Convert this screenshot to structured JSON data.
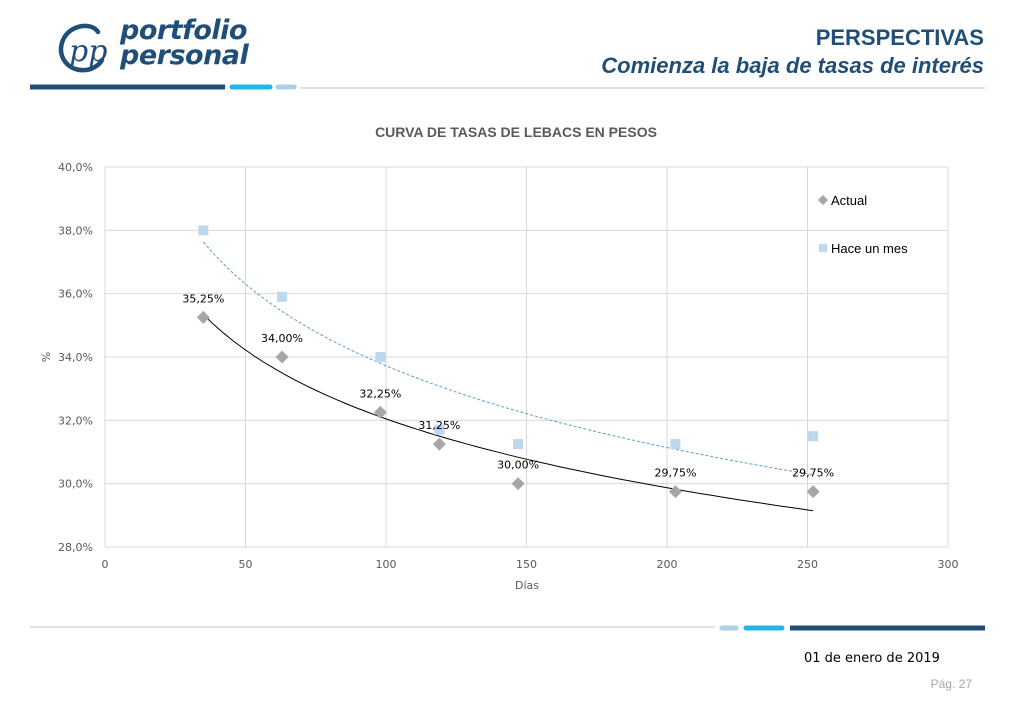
{
  "brand": {
    "logo_line1": "portfolio",
    "logo_line2": "personal",
    "logo_monogram": "pp"
  },
  "header": {
    "title": "PERSPECTIVAS",
    "subtitle": "Comienza la baja de tasas de interés"
  },
  "colors": {
    "brand_dark": "#1f4e79",
    "brand_cyan": "#25b4e4",
    "brand_light": "#a9d2e8",
    "series_actual": "#a6a6a6",
    "series_prev": "#bdd7ee",
    "trend_actual": "#000000",
    "trend_prev": "#5b9bd5"
  },
  "chart_data": {
    "type": "scatter",
    "title": "CURVA DE TASAS DE LEBACS EN PESOS",
    "xlabel": "Días",
    "ylabel": "%",
    "xlim": [
      0,
      300
    ],
    "ylim": [
      28,
      40
    ],
    "x_ticks": [
      "0",
      "50",
      "100",
      "150",
      "200",
      "250",
      "300"
    ],
    "y_ticks": [
      "28,0%",
      "30,0%",
      "32,0%",
      "34,0%",
      "36,0%",
      "38,0%",
      "40,0%"
    ],
    "grid": true,
    "legend_position": "top-right",
    "series": [
      {
        "name": "Actual",
        "marker": "diamond",
        "x": [
          35,
          63,
          98,
          119,
          147,
          203,
          252
        ],
        "y": [
          35.25,
          34.0,
          32.25,
          31.25,
          30.0,
          29.75,
          29.75
        ],
        "labels": [
          "35,25%",
          "34,00%",
          "32,25%",
          "31,25%",
          "30,00%",
          "29,75%",
          "29,75%"
        ],
        "trendline": "logarithmic"
      },
      {
        "name": "Hace un mes",
        "marker": "square",
        "x": [
          35,
          63,
          98,
          119,
          147,
          203,
          252
        ],
        "y": [
          38.0,
          35.9,
          34.0,
          31.7,
          31.25,
          31.25,
          31.5
        ],
        "trendline": "logarithmic"
      }
    ]
  },
  "footer": {
    "date": "01 de enero de 2019",
    "page": "Pág. 27"
  }
}
